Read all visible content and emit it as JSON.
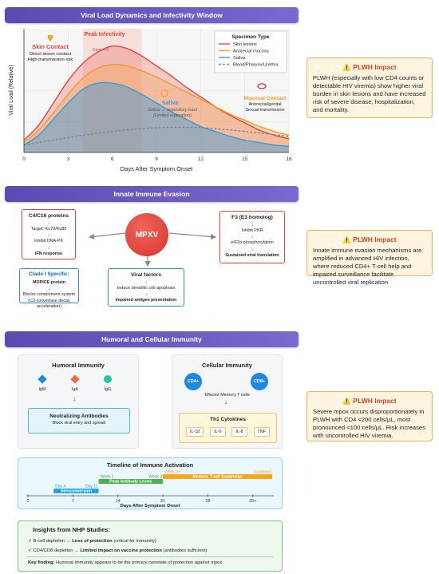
{
  "section1": {
    "header": "Viral Load Dynamics and Infectivity Window",
    "chart_data": {
      "type": "line",
      "xlabel": "Days After Symptom Onset",
      "ylabel": "Viral Load (Relative)",
      "xlim": [
        0,
        18
      ],
      "ylim": [
        0,
        100
      ],
      "x_ticks": [
        "0",
        "3",
        "6",
        "9",
        "12",
        "15",
        "18"
      ],
      "legend_title": "Specimen Type",
      "legend_position": "top-right",
      "series": [
        {
          "name": "Skin lesions",
          "color": "#e8443a",
          "x": [
            0,
            1,
            2,
            3,
            4,
            5,
            6,
            7,
            8,
            9,
            10,
            11,
            12,
            13,
            14,
            15,
            16,
            17,
            18
          ],
          "y": [
            10,
            22,
            40,
            58,
            72,
            81,
            86,
            84,
            78,
            70,
            62,
            53,
            45,
            37,
            30,
            24,
            18,
            14,
            11
          ]
        },
        {
          "name": "Anorectal mucosa",
          "color": "#f59a23",
          "x": [
            0,
            1,
            2,
            3,
            4,
            5,
            6,
            7,
            8,
            9,
            10,
            11,
            12,
            13,
            14,
            15,
            16,
            17,
            18
          ],
          "y": [
            8,
            18,
            32,
            47,
            60,
            68,
            71,
            70,
            66,
            61,
            55,
            49,
            43,
            37,
            31,
            26,
            21,
            17,
            14
          ]
        },
        {
          "name": "Saliva",
          "color": "#3a9ad9",
          "x": [
            0,
            1,
            2,
            3,
            4,
            5,
            6,
            7,
            8,
            9,
            10,
            11,
            12,
            13,
            14,
            15,
            16,
            17,
            18
          ],
          "y": [
            6,
            14,
            27,
            40,
            51,
            56,
            56,
            53,
            47,
            40,
            33,
            27,
            21,
            17,
            13,
            10,
            8,
            6,
            5
          ]
        },
        {
          "name": "Blood/Pharynx/Urethra",
          "color": "#7a8c99",
          "dashed": true,
          "x": [
            0,
            3,
            6,
            9,
            12,
            15,
            18
          ],
          "y": [
            6,
            12,
            17,
            20,
            20,
            17,
            13
          ]
        }
      ],
      "annotations": {
        "peak_label": "Peak Infectivity",
        "peak_days": "Days 4-8",
        "skin_title": "Skin Contact",
        "skin_line1": "Direct lesion contact",
        "skin_line2": "High transmission risk",
        "saliva_title": "Saliva",
        "saliva_line1": "Saliva → respiratory tract",
        "saliva_line2": "(Limited replication)",
        "mucosal_title": "Mucosal Contact",
        "mucosal_line1": "Anorectal/genital",
        "mucosal_line2": "Sexual transmission"
      }
    },
    "impact": {
      "title": "⚠️ PLWH Impact",
      "text": "PLWH (especially with low CD4 counts or detectable HIV viremia) show higher viral burden in skin lesions and have increased risk of severe disease, hospitalization, and mortality."
    }
  },
  "section2": {
    "header": "Innate Immune Evasion",
    "center": "MPXV",
    "c4c16": {
      "title": "C4/C16 proteins",
      "l1": "Target: Ku70/Ku80",
      "l2": "Inhibit DNA-PK",
      "l3": "IFN response"
    },
    "clade": {
      "title": "Clade I Specific:",
      "l1": "MOPICE protein",
      "l2": "Blocks complement system",
      "l3": "(C3 convertase decay acceleration)"
    },
    "f3": {
      "title": "F3 (E3 homolog)",
      "l1": "Inhibit PKR",
      "l2": "eIF2α phosphorylation",
      "l3": "Sustained viral translation"
    },
    "viral": {
      "title": "Viral factors",
      "l1": "Induce dendritic cell apoptosis",
      "l2": "Impaired antigen presentation"
    },
    "impact": {
      "title": "⚠️ PLWH Impact",
      "text": "Innate immune evasion mechanisms are amplified in advanced HIV infection, where reduced CD4+ T-cell help and impaired surveillance facilitate uncontrolled viral replication"
    }
  },
  "section3": {
    "header": "Humoral and Cellular Immunity",
    "humoral": {
      "title": "Humoral Immunity",
      "igm": "IgM",
      "iga": "IgA",
      "igg": "IgG",
      "nab_title": "Neutralizing Antibodies",
      "nab_sub": "Block viral entry and spread"
    },
    "cellular": {
      "title": "Cellular Immunity",
      "cd4": "CD4+",
      "cd8": "CD8+",
      "memory": "Effector Memory T cells",
      "th1": "Th1 Cytokines",
      "cytokines": [
        "IL-1β",
        "IL-6",
        "IL-8",
        "TNF"
      ]
    },
    "timeline": {
      "title": "Timeline of Immune Activation",
      "xlabel": "Days After Symptom Onset",
      "ticks": [
        "0",
        "7",
        "14",
        "21",
        "28",
        "35+"
      ],
      "bars": [
        {
          "tag": "Day 4",
          "label": "Seroconversion",
          "color": "#1fa6e0"
        },
        {
          "tag": "Week 2",
          "label": "Peak Antibody Levels",
          "color": "#4caf50"
        },
        {
          "tag": "Week 3+",
          "label": "Memory T-cell Expansion",
          "color": "#f5a623"
        }
      ],
      "markers": [
        "Day 11",
        "Week 3",
        "Sustained"
      ]
    },
    "insights": {
      "title": "Insights from NHP Studies:",
      "r1_a": "✓ B-cell depletion →",
      "r1_b": "Loss of protection",
      "r1_c": "(critical for immunity)",
      "r2_a": "✓ CD4/CD8 depletion →",
      "r2_b": "Limited impact on vaccine protection",
      "r2_c": "(antibodies sufficient)",
      "key_a": "Key finding:",
      "key_b": "Humoral immunity appears to be the primary correlate of protection against mpox"
    },
    "impact": {
      "title": "⚠️ PLWH Impact",
      "text": "Severe mpox occurs disproportionately in PLWH with CD4 <200 cells/μL, most pronounced <100 cells/μL. Risk increases with uncontrolled HIV viremia."
    }
  }
}
